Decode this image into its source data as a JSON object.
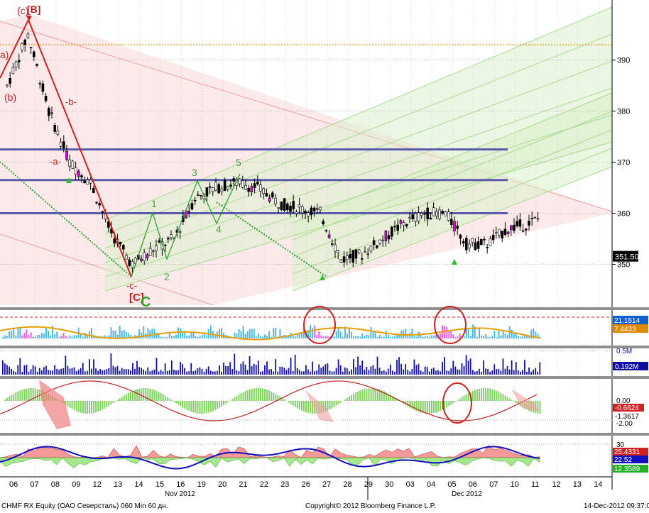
{
  "footer": {
    "left": "CHMF RX Equity (ОАО Северсталь) 060 Min 60 дн.",
    "center": "Copyright© 2012 Bloomberg Finance L.P.",
    "right": "14-Dec-2012 09:37:09"
  },
  "x_axis": {
    "ticks": [
      "06",
      "07",
      "08",
      "09",
      "12",
      "13",
      "14",
      "15",
      "16",
      "19",
      "20",
      "21",
      "22",
      "23",
      "26",
      "27",
      "28",
      "29",
      "30",
      "03",
      "04",
      "05",
      "06",
      "07",
      "10",
      "11",
      "12",
      "13",
      "14"
    ],
    "months": [
      "Nov 2012",
      "Dec 2012"
    ]
  },
  "colors": {
    "up": "#000000",
    "down": "#000000",
    "channel_red": "#f8d0d0",
    "channel_green": "#d8f0c8",
    "resistance": "#5a5aaa",
    "orange_line": "#e8a000",
    "volume": "#1010a0",
    "price_label_bg": "#000000"
  },
  "price_panel": {
    "y_axis_ticks": [
      350,
      360,
      370,
      380,
      390
    ],
    "ylim": [
      342,
      399
    ],
    "last_price": "351.50",
    "dotted_level": 393,
    "resistance_levels": [
      372.5,
      366.5,
      360
    ],
    "wave_labels": {
      "top_c": "(c)",
      "top_B": "[B]",
      "a_paren": "a)",
      "b_paren": "(b)",
      "b_dash": "-b-",
      "a_dash": "-a-",
      "w1": "1",
      "w2": "2",
      "w3": "3",
      "w4": "4",
      "w5": "5",
      "c_dash": "-c-",
      "C_bracket": "[C]",
      "C_big": "C"
    }
  },
  "chart_data": [
    {
      "type": "line",
      "name": "CHMF RX price (60 min)",
      "x": [
        "06",
        "07",
        "08",
        "09",
        "12",
        "13",
        "14",
        "15",
        "16",
        "19",
        "20",
        "21",
        "22",
        "23",
        "26",
        "27",
        "28",
        "29",
        "30",
        "03",
        "04",
        "05",
        "06",
        "07",
        "10",
        "11",
        "12",
        "13"
      ],
      "values": [
        385,
        395,
        380,
        370,
        366,
        356,
        350,
        353,
        355,
        363,
        365,
        366,
        365,
        362,
        361,
        360,
        351,
        352,
        355,
        358,
        360,
        360,
        354,
        354,
        357,
        358,
        360,
        351.5
      ],
      "ylim": [
        342,
        399
      ]
    },
    {
      "type": "bar",
      "name": "momentum histogram",
      "labels_right": [
        "21.1514",
        "7.4433"
      ]
    },
    {
      "type": "bar",
      "name": "volume",
      "labels_right": [
        "0.5M",
        "0.192M"
      ]
    },
    {
      "type": "line",
      "name": "oscillator",
      "labels_right": [
        "0.00",
        "-0.6624",
        "-1.3617",
        "-2.00"
      ]
    },
    {
      "type": "area",
      "name": "DMI",
      "labels_right": [
        "30",
        "25.4331",
        "22.52",
        "12.3589"
      ]
    }
  ]
}
